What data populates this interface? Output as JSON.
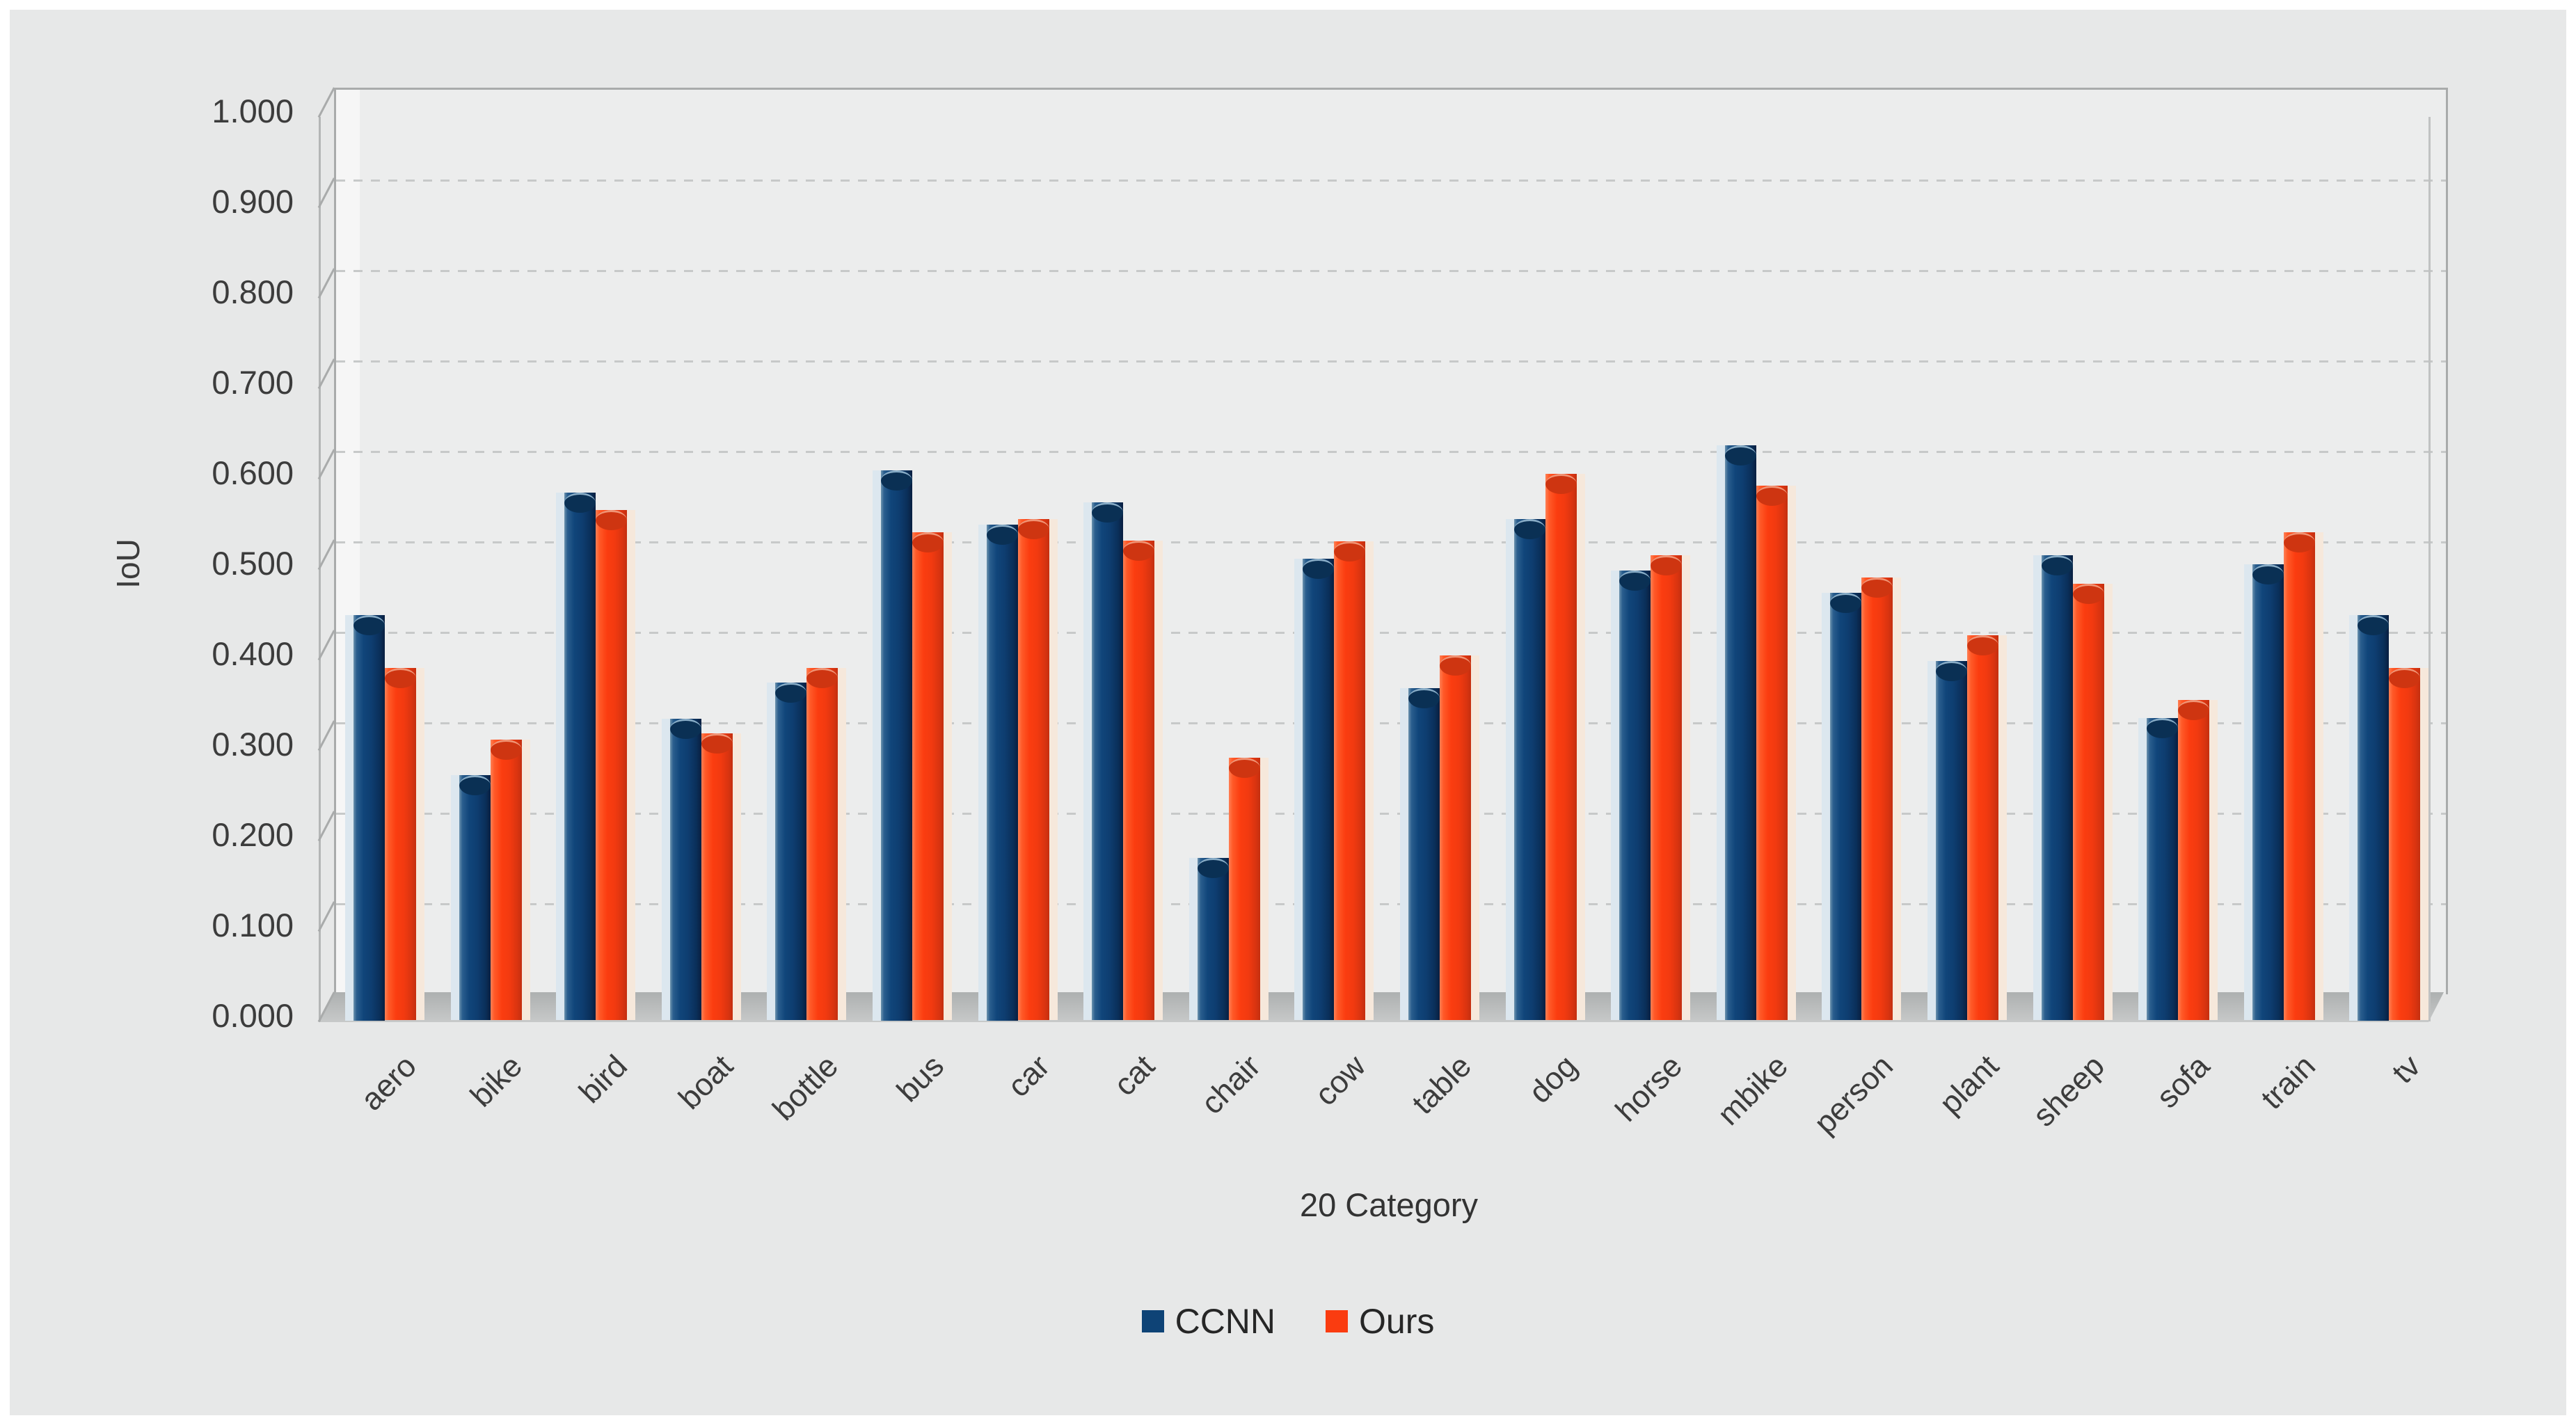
{
  "figure": {
    "background": "#E7E8E8",
    "frame": "#FFFFFF",
    "wall_color": "#ECEDED",
    "gridline_color": "#C7C9C9",
    "floor_color": "#B8BABA"
  },
  "chart_data": {
    "type": "bar",
    "style": "3d-cylinder-clustered",
    "title": "",
    "xlabel": "20 Category",
    "ylabel": "IoU",
    "ylim": [
      0.0,
      1.0
    ],
    "ytick_step": 0.1,
    "ytick_labels": [
      "1.000",
      "0.900",
      "0.800",
      "0.700",
      "0.600",
      "0.500",
      "0.400",
      "0.300",
      "0.200",
      "0.100",
      "0.000"
    ],
    "grid": "horizontal dashed",
    "legend_position": "bottom center",
    "categories": [
      "aero",
      "bike",
      "bird",
      "boat",
      "bottle",
      "bus",
      "car",
      "cat",
      "chair",
      "cow",
      "table",
      "dog",
      "horse",
      "mbike",
      "person",
      "plant",
      "sheep",
      "sofa",
      "train",
      "tv"
    ],
    "series": [
      {
        "name": "CCNN",
        "color": "#0E4376",
        "values": [
          0.425,
          0.248,
          0.56,
          0.31,
          0.35,
          0.585,
          0.525,
          0.549,
          0.156,
          0.487,
          0.344,
          0.531,
          0.474,
          0.612,
          0.449,
          0.374,
          0.491,
          0.311,
          0.481,
          0.425
        ]
      },
      {
        "name": "Ours",
        "color": "#FA3C10",
        "values": [
          0.366,
          0.287,
          0.541,
          0.294,
          0.366,
          0.516,
          0.531,
          0.507,
          0.267,
          0.506,
          0.38,
          0.581,
          0.491,
          0.568,
          0.466,
          0.402,
          0.459,
          0.331,
          0.516,
          0.366
        ]
      }
    ]
  }
}
